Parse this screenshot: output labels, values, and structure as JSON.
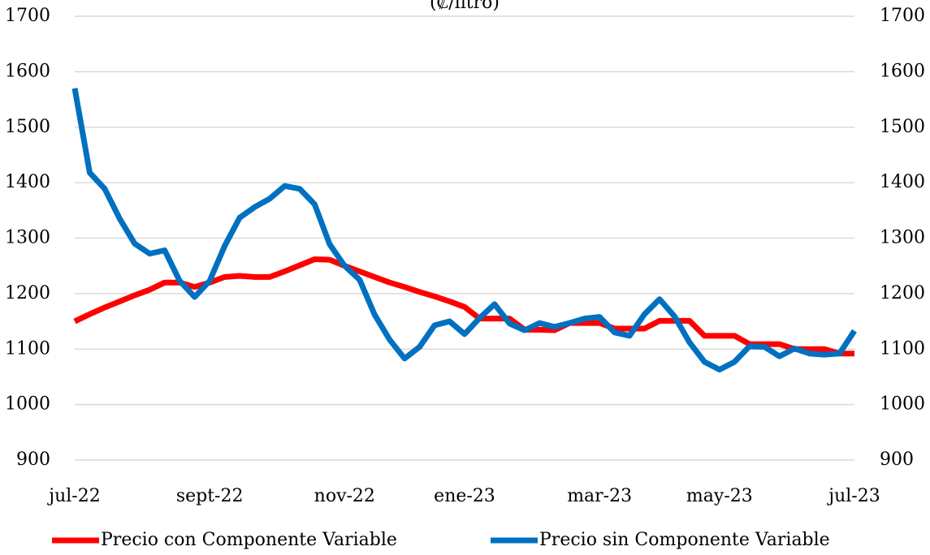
{
  "chart_data": {
    "type": "line",
    "title": "(₡/litro)",
    "categories": [
      "jul-22",
      null,
      null,
      null,
      null,
      null,
      null,
      null,
      null,
      "sept-22",
      null,
      null,
      null,
      null,
      null,
      null,
      null,
      null,
      "nov-22",
      null,
      null,
      null,
      null,
      null,
      null,
      null,
      "ene-23",
      null,
      null,
      null,
      null,
      null,
      null,
      null,
      null,
      "mar-23",
      null,
      null,
      null,
      null,
      null,
      null,
      null,
      "may-23",
      null,
      null,
      null,
      null,
      null,
      null,
      null,
      null,
      "jul-23"
    ],
    "series": [
      {
        "name": "Precio con Componente Variable",
        "color": "#ff0000",
        "values": [
          1150,
          1163,
          1175,
          1186,
          1197,
          1207,
          1220,
          1220,
          1212,
          1220,
          1230,
          1232,
          1230,
          1230,
          1240,
          1251,
          1262,
          1261,
          1250,
          1240,
          1230,
          1220,
          1212,
          1203,
          1195,
          1186,
          1176,
          1155,
          1155,
          1155,
          1135,
          1135,
          1134,
          1147,
          1147,
          1147,
          1137,
          1137,
          1137,
          1151,
          1151,
          1151,
          1124,
          1124,
          1124,
          1109,
          1109,
          1109,
          1100,
          1100,
          1100,
          1092,
          1092
        ]
      },
      {
        "name": "Precio sin Componente Variable",
        "color": "#0070c0",
        "values": [
          1570,
          1418,
          1389,
          1335,
          1290,
          1272,
          1278,
          1223,
          1194,
          1223,
          1286,
          1337,
          1356,
          1371,
          1394,
          1389,
          1361,
          1289,
          1250,
          1225,
          1162,
          1117,
          1083,
          1104,
          1143,
          1150,
          1127,
          1156,
          1181,
          1146,
          1134,
          1147,
          1140,
          1147,
          1155,
          1158,
          1130,
          1124,
          1163,
          1190,
          1159,
          1112,
          1077,
          1063,
          1077,
          1105,
          1104,
          1087,
          1101,
          1092,
          1090,
          1092,
          1133
        ]
      }
    ],
    "ylim": [
      900,
      1700
    ],
    "yticks": [
      900,
      1000,
      1100,
      1200,
      1300,
      1400,
      1500,
      1600,
      1700
    ],
    "y2lim": [
      900,
      1700
    ],
    "y2ticks": [
      900,
      1000,
      1100,
      1200,
      1300,
      1400,
      1500,
      1600,
      1700
    ],
    "grid": true,
    "legend": "bottom"
  }
}
